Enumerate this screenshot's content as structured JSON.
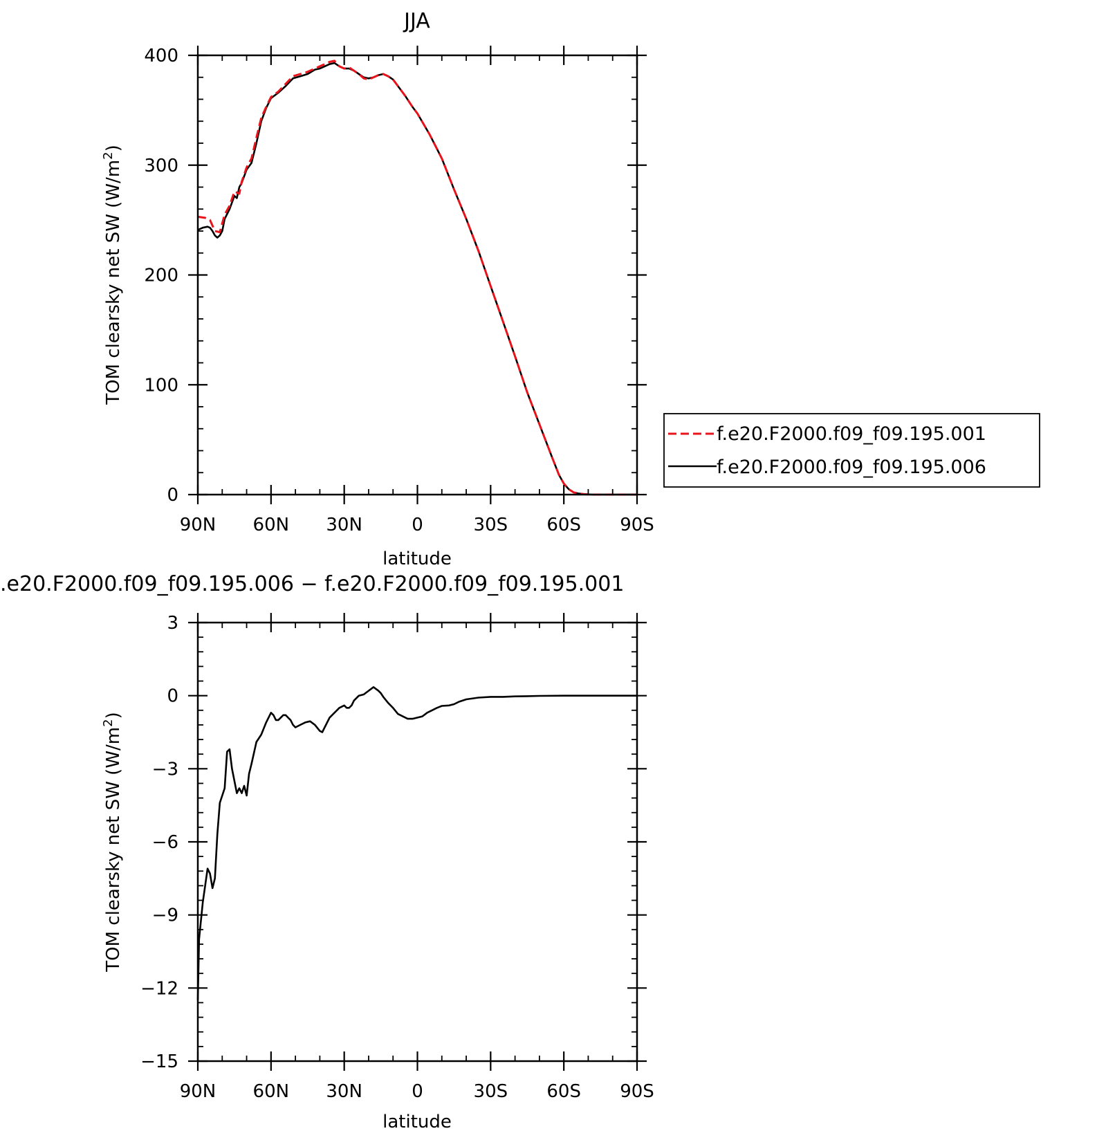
{
  "chart_data": [
    {
      "type": "line",
      "title": "JJA",
      "xlabel": "latitude",
      "ylabel": "TOM clearsky net SW (W/m",
      "ylabel_sup": "2",
      "ylabel_close": ")",
      "xlim": [
        90,
        -90
      ],
      "ylim": [
        0,
        400
      ],
      "x_ticks": [
        90,
        60,
        30,
        0,
        -30,
        -60,
        -90
      ],
      "x_tick_labels": [
        "90N",
        "60N",
        "30N",
        "0",
        "30S",
        "60S",
        "90S"
      ],
      "y_ticks": [
        0,
        100,
        200,
        300,
        400
      ],
      "y_tick_labels": [
        "0",
        "100",
        "200",
        "300",
        "400"
      ],
      "legend_position": "right",
      "series": [
        {
          "name": "f.e20.F2000.f09_f09.195.001",
          "color": "#e8141b",
          "dash": "dashed",
          "x": [
            90,
            87,
            85,
            83,
            81,
            79,
            77,
            75,
            73,
            72,
            70,
            68,
            66,
            64,
            62,
            60,
            57,
            54,
            51,
            48,
            45,
            42,
            40,
            38,
            36,
            34,
            32,
            30,
            28,
            26,
            24,
            22,
            20,
            18,
            16,
            14,
            12,
            10,
            8,
            5,
            2,
            0,
            -5,
            -10,
            -15,
            -20,
            -25,
            -30,
            -35,
            -40,
            -45,
            -50,
            -55,
            -58,
            -60,
            -62,
            -64,
            -66,
            -68,
            -70,
            -72,
            -75,
            -80,
            -85,
            -90
          ],
          "y": [
            253,
            252,
            250,
            240,
            239,
            255,
            263,
            276,
            274,
            285,
            298,
            306,
            325,
            343,
            353,
            362,
            367,
            374,
            381,
            383,
            385,
            388,
            390,
            392,
            394,
            395,
            390,
            388,
            389,
            386,
            383,
            379,
            378,
            380,
            382,
            383,
            381,
            378,
            372,
            363,
            353,
            347,
            328,
            306,
            278,
            251,
            222,
            190,
            158,
            126,
            93,
            64,
            35,
            18,
            10,
            5,
            2,
            1,
            0.5,
            0.2,
            0,
            0,
            0,
            0,
            0
          ]
        },
        {
          "name": "f.e20.F2000.f09_f09.195.006",
          "color": "#000000",
          "dash": "solid",
          "x": [
            90,
            88,
            86,
            85,
            84,
            83,
            82,
            81,
            80,
            79,
            77,
            75,
            74,
            73,
            72,
            70,
            68,
            66,
            64,
            62,
            60,
            57,
            54,
            51,
            48,
            45,
            42,
            40,
            38,
            36,
            34,
            32,
            30,
            28,
            26,
            24,
            22,
            20,
            18,
            16,
            14,
            12,
            10,
            8,
            5,
            2,
            0,
            -5,
            -10,
            -15,
            -20,
            -25,
            -30,
            -35,
            -40,
            -45,
            -50,
            -55,
            -58,
            -60,
            -62,
            -64,
            -66,
            -68,
            -70,
            -72,
            -75,
            -80,
            -85,
            -90
          ],
          "y": [
            241,
            243,
            244,
            243,
            240,
            236,
            234,
            236,
            240,
            251,
            260,
            272,
            270,
            280,
            284,
            296,
            302,
            320,
            340,
            352,
            361,
            366,
            372,
            379,
            381,
            383,
            387,
            388,
            390,
            392,
            393,
            390,
            388,
            388,
            386,
            383,
            380,
            379,
            380,
            382,
            383,
            381,
            378,
            372,
            363,
            353,
            347,
            328,
            306,
            278,
            251,
            222,
            190,
            158,
            126,
            93,
            64,
            35,
            18,
            10,
            5,
            2,
            1,
            0.5,
            0.2,
            0,
            0,
            0,
            0,
            0
          ]
        }
      ]
    },
    {
      "type": "line",
      "title": ".e20.F2000.f09_f09.195.006 − f.e20.F2000.f09_f09.195.001",
      "xlabel": "latitude",
      "ylabel": "TOM clearsky net SW (W/m",
      "ylabel_sup": "2",
      "ylabel_close": ")",
      "xlim": [
        90,
        -90
      ],
      "ylim": [
        -15,
        3
      ],
      "x_ticks": [
        90,
        60,
        30,
        0,
        -30,
        -60,
        -90
      ],
      "x_tick_labels": [
        "90N",
        "60N",
        "30N",
        "0",
        "30S",
        "60S",
        "90S"
      ],
      "y_ticks": [
        -15,
        -12,
        -9,
        -6,
        -3,
        0,
        3
      ],
      "y_tick_labels": [
        "−15",
        "−12",
        "−9",
        "−6",
        "−3",
        "0",
        "3"
      ],
      "series": [
        {
          "color": "#000000",
          "dash": "solid",
          "x": [
            90,
            89.5,
            88,
            86,
            85,
            84,
            83,
            82,
            81,
            80,
            79,
            78,
            77,
            76,
            75,
            74,
            73,
            72,
            71,
            70,
            69,
            68,
            66,
            64,
            62,
            60,
            59,
            58,
            57,
            56,
            55,
            54,
            53,
            52,
            51,
            50,
            48,
            46,
            44,
            42,
            40,
            39,
            38,
            37,
            36,
            34,
            32,
            30,
            29,
            28,
            27,
            26,
            24,
            22,
            20,
            18,
            16,
            15,
            14,
            12,
            10,
            8,
            6,
            4,
            2,
            0,
            -2,
            -4,
            -6,
            -8,
            -10,
            -13,
            -15,
            -17,
            -20,
            -25,
            -30,
            -35,
            -40,
            -45,
            -50,
            -60,
            -70,
            -80,
            -90
          ],
          "y": [
            -12.5,
            -10,
            -8.5,
            -7.1,
            -7.3,
            -7.9,
            -7.5,
            -5.7,
            -4.4,
            -4.1,
            -3.8,
            -2.3,
            -2.2,
            -3.0,
            -3.5,
            -4.0,
            -3.8,
            -4.0,
            -3.7,
            -4.1,
            -3.2,
            -2.8,
            -1.9,
            -1.6,
            -1.1,
            -0.7,
            -0.8,
            -1.0,
            -1.0,
            -0.9,
            -0.8,
            -0.8,
            -0.9,
            -1.0,
            -1.2,
            -1.3,
            -1.2,
            -1.1,
            -1.05,
            -1.2,
            -1.45,
            -1.5,
            -1.3,
            -1.1,
            -0.9,
            -0.7,
            -0.5,
            -0.4,
            -0.5,
            -0.5,
            -0.4,
            -0.2,
            0.0,
            0.05,
            0.2,
            0.35,
            0.2,
            0.1,
            -0.05,
            -0.3,
            -0.5,
            -0.75,
            -0.85,
            -0.95,
            -0.95,
            -0.9,
            -0.85,
            -0.7,
            -0.6,
            -0.5,
            -0.42,
            -0.4,
            -0.35,
            -0.25,
            -0.15,
            -0.08,
            -0.05,
            -0.05,
            -0.03,
            -0.02,
            -0.01,
            0,
            0,
            0,
            0
          ]
        }
      ]
    }
  ]
}
